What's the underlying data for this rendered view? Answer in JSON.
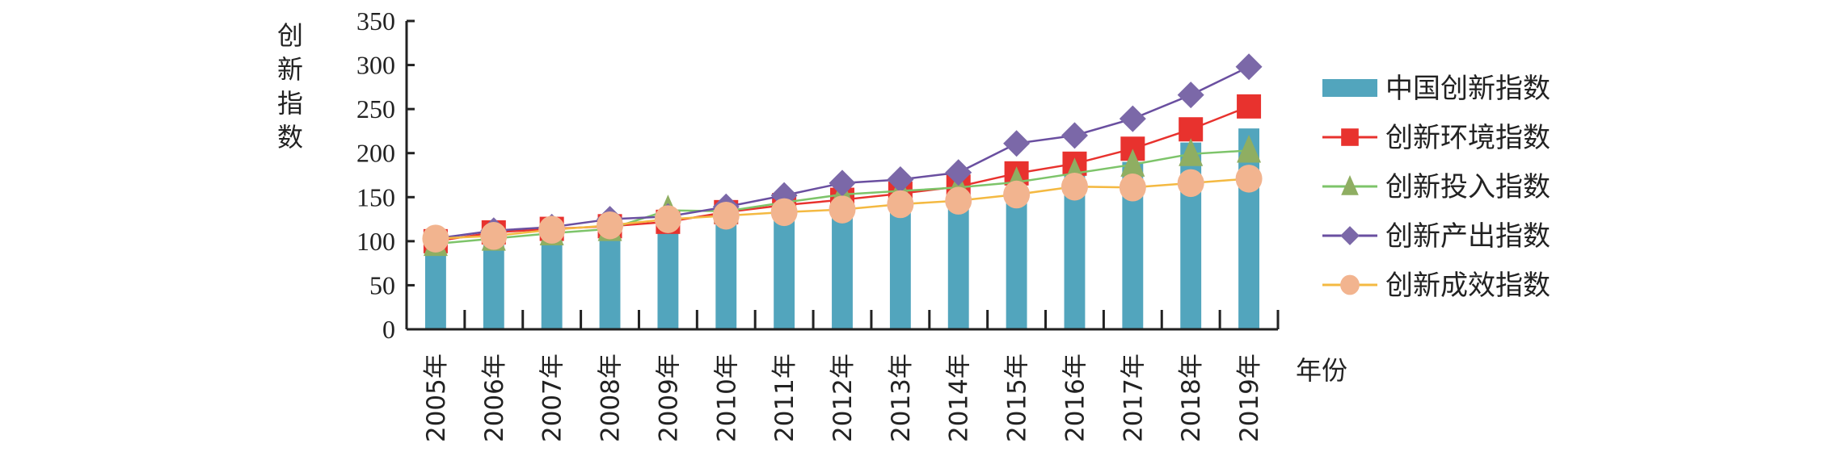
{
  "chart_data": {
    "type": "bar+line",
    "title": "",
    "xlabel": "年份",
    "ylabel": "创新指数",
    "ylim": [
      0,
      350
    ],
    "yticks": [
      0,
      50,
      100,
      150,
      200,
      250,
      300,
      350
    ],
    "categories": [
      "2005年",
      "2006年",
      "2007年",
      "2008年",
      "2009年",
      "2010年",
      "2011年",
      "2012年",
      "2013年",
      "2014年",
      "2015年",
      "2016年",
      "2017年",
      "2018年",
      "2019年"
    ],
    "legend_position": "right",
    "series": [
      {
        "name": "中国创新指数",
        "kind": "bar",
        "color": "#52a5bd",
        "values": [
          100,
          104,
          109,
          115,
          122,
          128,
          138,
          148,
          152,
          158,
          171,
          180,
          190,
          212,
          228
        ]
      },
      {
        "name": "创新环境指数",
        "kind": "line",
        "marker": "square",
        "color": "#e8322e",
        "line_color": "#e8322e",
        "values": [
          100,
          110,
          114,
          117,
          122,
          133,
          141,
          147,
          154,
          162,
          177,
          188,
          205,
          227,
          253
        ]
      },
      {
        "name": "创新投入指数",
        "kind": "line",
        "marker": "triangle",
        "color": "#8fae62",
        "line_color": "#7dc46a",
        "values": [
          97,
          103,
          109,
          114,
          135,
          134,
          144,
          153,
          157,
          161,
          167,
          177,
          187,
          199,
          203
        ]
      },
      {
        "name": "创新产出指数",
        "kind": "line",
        "marker": "diamond",
        "color": "#7b68a8",
        "line_color": "#6a4fa0",
        "values": [
          103,
          112,
          116,
          125,
          128,
          139,
          152,
          166,
          170,
          178,
          211,
          220,
          239,
          266,
          298
        ]
      },
      {
        "name": "创新成效指数",
        "kind": "line",
        "marker": "circle",
        "color": "#f2b48f",
        "line_color": "#f4b942",
        "values": [
          103,
          106,
          113,
          118,
          125,
          129,
          133,
          136,
          142,
          146,
          153,
          162,
          161,
          166,
          171
        ]
      }
    ]
  }
}
